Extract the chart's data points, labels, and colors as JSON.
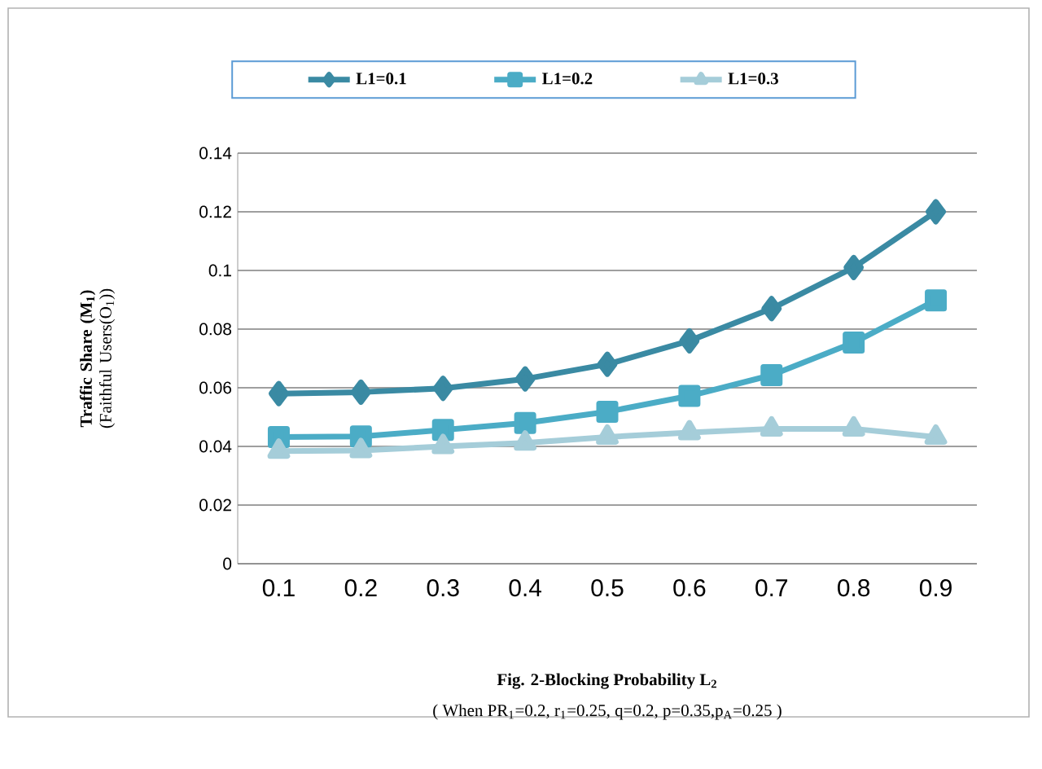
{
  "chart_data": {
    "type": "line",
    "categories": [
      "0.1",
      "0.2",
      "0.3",
      "0.4",
      "0.5",
      "0.6",
      "0.7",
      "0.8",
      "0.9"
    ],
    "series": [
      {
        "name": "L1=0.1",
        "color": "#3a8aa3",
        "marker": "diamond",
        "values": [
          0.058,
          0.0585,
          0.0598,
          0.063,
          0.068,
          0.076,
          0.087,
          0.101,
          0.12
        ]
      },
      {
        "name": "L1=0.2",
        "color": "#4bacc6",
        "marker": "square",
        "values": [
          0.0432,
          0.0434,
          0.0456,
          0.048,
          0.0518,
          0.0572,
          0.0643,
          0.0754,
          0.0898
        ]
      },
      {
        "name": "L1=0.3",
        "color": "#a5cdd9",
        "marker": "triangle",
        "values": [
          0.0384,
          0.0386,
          0.04,
          0.0412,
          0.0432,
          0.0447,
          0.046,
          0.046,
          0.0432
        ]
      }
    ],
    "xlabel": "Fig. 2-Blocking Probability L$_{2}$",
    "ylabel": "**Traffic Share (M$_{1}$)** (Faithful Users(O$_{1}$))",
    "annotations": [
      "( When  PR$_{1}$=0.2, r$_{1}$=0.25, q=0.2, p=0.35,p$_{A}$=0.25 )"
    ],
    "ylim": [
      0,
      0.14
    ],
    "yticks": [
      0,
      0.02,
      0.04,
      0.06,
      0.08,
      0.1,
      0.12,
      0.14
    ],
    "grid": "y",
    "legend": "top",
    "line_style": "solid"
  }
}
